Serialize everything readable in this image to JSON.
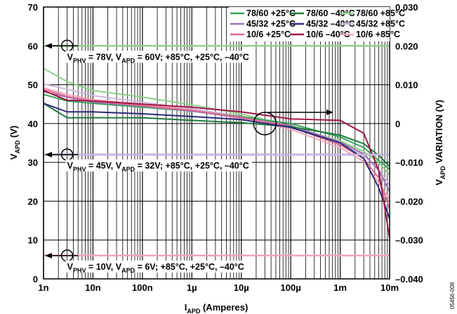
{
  "chart_data": {
    "type": "line",
    "xlabel": "APD (Amperes)",
    "xlabel_main": "I",
    "xlabel_sub": "APD",
    "xlabel_rest": " (Amperes)",
    "ylabel_main": "V",
    "ylabel_sub": "APD",
    "ylabel_rest": " (V)",
    "y2label_main": "V",
    "y2label_sub": "APD",
    "y2label_rest": " VARIATION (V)",
    "x_scale": "log",
    "xlim": [
      1e-09,
      0.01
    ],
    "ylim": [
      0,
      70
    ],
    "y2lim": [
      -0.04,
      0.03
    ],
    "grid": true,
    "legend_position": "top-right",
    "x_ticks": [
      {
        "value": 1e-09,
        "label": "1n"
      },
      {
        "value": 1e-08,
        "label": "10n"
      },
      {
        "value": 1e-07,
        "label": "100n"
      },
      {
        "value": 1e-06,
        "label": "1µ"
      },
      {
        "value": 1e-05,
        "label": "10µ"
      },
      {
        "value": 0.0001,
        "label": "100µ"
      },
      {
        "value": 0.001,
        "label": "1m"
      },
      {
        "value": 0.01,
        "label": "10m"
      }
    ],
    "y_ticks": [
      {
        "value": 0,
        "label": "0"
      },
      {
        "value": 10,
        "label": "10"
      },
      {
        "value": 20,
        "label": "20"
      },
      {
        "value": 30,
        "label": "30"
      },
      {
        "value": 40,
        "label": "40"
      },
      {
        "value": 50,
        "label": "50"
      },
      {
        "value": 60,
        "label": "60"
      },
      {
        "value": 70,
        "label": "70"
      }
    ],
    "y2_ticks": [
      {
        "value": -0.04,
        "label": "–0.040"
      },
      {
        "value": -0.03,
        "label": "–0.030"
      },
      {
        "value": -0.02,
        "label": "–0.020"
      },
      {
        "value": -0.01,
        "label": "–0.010"
      },
      {
        "value": 0,
        "label": "0"
      },
      {
        "value": 0.01,
        "label": "0.010"
      },
      {
        "value": 0.02,
        "label": "0.020"
      },
      {
        "value": 0.03,
        "label": "0.030"
      }
    ],
    "annotations": [
      {
        "parts": [
          "V",
          "PHV",
          " = 78V, V",
          "APD",
          " = 60V; +85°C, +25°C, –40°C"
        ],
        "y": 60
      },
      {
        "parts": [
          "V",
          "PHV",
          " = 45V, V",
          "APD",
          " = 32V; +85°C, +25°C, –40°C"
        ],
        "y": 32
      },
      {
        "parts": [
          "V",
          "PHV",
          " = 10V, V",
          "APD",
          " = 6V; +85°C, +25°C, –40°C"
        ],
        "y": 6
      }
    ],
    "fig_id": "05456-008",
    "series": [
      {
        "name": "78/60 +25°C",
        "color": "#3aa35a",
        "axis": "left",
        "x": [
          1e-09,
          0.01
        ],
        "y": [
          60,
          60
        ]
      },
      {
        "name": "78/60 –40°C",
        "color": "#1e7a3c",
        "axis": "left",
        "x": [
          1e-09,
          0.01
        ],
        "y": [
          60,
          60
        ]
      },
      {
        "name": "78/60 +85°C",
        "color": "#8fd08a",
        "axis": "left",
        "x": [
          1e-09,
          0.01
        ],
        "y": [
          60,
          60
        ]
      },
      {
        "name": "45/32 +25°C",
        "color": "#9b73b6",
        "axis": "left",
        "x": [
          1e-09,
          0.01
        ],
        "y": [
          32,
          32
        ]
      },
      {
        "name": "45/32 –40°C",
        "color": "#2b2a7a",
        "axis": "left",
        "x": [
          1e-09,
          0.01
        ],
        "y": [
          32,
          32
        ]
      },
      {
        "name": "45/32 +85°C",
        "color": "#cdb8de",
        "axis": "left",
        "x": [
          1e-09,
          0.01
        ],
        "y": [
          32,
          32
        ]
      },
      {
        "name": "10/6 +25°C",
        "color": "#e06a8c",
        "axis": "left",
        "x": [
          1e-09,
          0.01
        ],
        "y": [
          6,
          6
        ]
      },
      {
        "name": "10/6 –40°C",
        "color": "#a01848",
        "axis": "left",
        "x": [
          1e-09,
          0.01
        ],
        "y": [
          6,
          6
        ]
      },
      {
        "name": "10/6 +85°C",
        "color": "#f1a4b8",
        "axis": "left",
        "x": [
          1e-09,
          0.01
        ],
        "y": [
          6,
          6
        ]
      }
    ],
    "variation_series": [
      {
        "color": "#8fd08a",
        "x": [
          1e-09,
          3e-09,
          1e-08,
          1e-07,
          1e-06,
          1e-05,
          0.0001,
          0.001,
          0.003,
          0.006,
          0.01
        ],
        "y": [
          0.0142,
          0.0108,
          0.0085,
          0.0068,
          0.0048,
          0.0025,
          -0.0008,
          -0.0045,
          -0.0072,
          -0.01,
          -0.0132
        ]
      },
      {
        "color": "#cdb8de",
        "x": [
          1e-09,
          3e-09,
          1e-08,
          1e-07,
          1e-06,
          1e-05,
          0.0001,
          0.001,
          0.003,
          0.006,
          0.01
        ],
        "y": [
          0.0102,
          0.0088,
          0.0072,
          0.0055,
          0.0038,
          0.0018,
          -0.001,
          -0.0052,
          -0.0082,
          -0.0118,
          -0.0158
        ]
      },
      {
        "color": "#f1a4b8",
        "x": [
          1e-09,
          3e-09,
          1e-08,
          1e-07,
          1e-06,
          1e-05,
          0.0001,
          0.001,
          0.003,
          0.006,
          0.01
        ],
        "y": [
          0.0092,
          0.0075,
          0.0062,
          0.005,
          0.0035,
          0.0012,
          -0.0015,
          -0.0062,
          -0.0098,
          -0.0152,
          -0.0195
        ]
      },
      {
        "color": "#3aa35a",
        "x": [
          1e-09,
          3e-09,
          1e-08,
          1e-07,
          1e-06,
          1e-05,
          0.0001,
          0.001,
          0.003,
          0.006,
          0.01
        ],
        "y": [
          0.0075,
          0.0058,
          0.0052,
          0.0042,
          0.0032,
          0.0018,
          0.0,
          -0.0035,
          -0.0062,
          -0.0095,
          -0.0118
        ]
      },
      {
        "color": "#9b73b6",
        "x": [
          1e-09,
          3e-09,
          1e-08,
          1e-07,
          1e-06,
          1e-05,
          0.0001,
          0.001,
          0.003,
          0.006,
          0.01
        ],
        "y": [
          0.0082,
          0.0068,
          0.0055,
          0.0045,
          0.0032,
          0.0015,
          -0.0005,
          -0.0048,
          -0.0078,
          -0.012,
          -0.0175
        ]
      },
      {
        "color": "#e06a8c",
        "x": [
          1e-09,
          3e-09,
          1e-08,
          1e-07,
          1e-06,
          1e-05,
          0.0001,
          0.001,
          0.003,
          0.006,
          0.01
        ],
        "y": [
          0.0088,
          0.007,
          0.0058,
          0.0046,
          0.0034,
          0.0016,
          -0.0008,
          -0.0055,
          -0.009,
          -0.014,
          -0.022
        ]
      },
      {
        "color": "#1e7a3c",
        "x": [
          1e-09,
          3e-09,
          1e-08,
          1e-07,
          1e-06,
          1e-05,
          0.0001,
          0.001,
          0.003,
          0.006,
          0.01
        ],
        "y": [
          0.0052,
          0.0015,
          0.0015,
          0.0015,
          0.0008,
          0.0002,
          -0.0008,
          -0.003,
          -0.0052,
          -0.0082,
          -0.011
        ]
      },
      {
        "color": "#2b2a7a",
        "x": [
          1e-09,
          3e-09,
          1e-08,
          1e-07,
          1e-06,
          1e-05,
          0.0001,
          0.001,
          0.003,
          0.006,
          0.01
        ],
        "y": [
          0.0052,
          0.003,
          0.003,
          0.0025,
          0.0018,
          0.001,
          -0.001,
          -0.005,
          -0.009,
          -0.0165,
          -0.0245
        ]
      },
      {
        "color": "#a01848",
        "x": [
          1e-09,
          3e-09,
          1e-08,
          1e-07,
          1e-06,
          1e-05,
          0.0001,
          0.001,
          0.003,
          0.006,
          0.01
        ],
        "y": [
          0.0085,
          0.006,
          0.0058,
          0.005,
          0.0042,
          0.003,
          0.0012,
          0.0008,
          -0.0025,
          -0.012,
          -0.0295
        ]
      }
    ]
  }
}
